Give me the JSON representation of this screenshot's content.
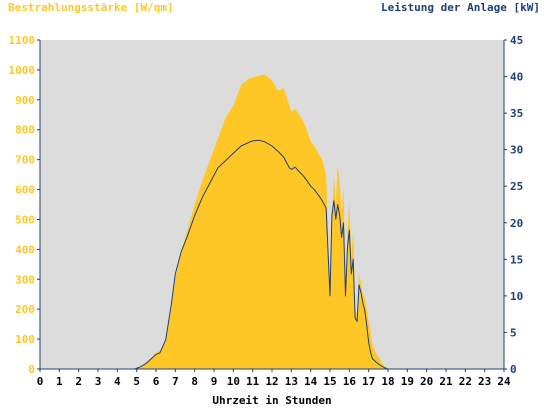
{
  "colors": {
    "irradiance": "#ffc726",
    "power": "#1f3f7a",
    "plot_bg": "#dcdcdc",
    "axis": "#1f3f7a"
  },
  "chart_data": {
    "type": "area",
    "title": "",
    "ylabel": "Bestrahlungsstärke [W/qm]",
    "y2label": "Leistung der Anlage [kW]",
    "xlabel": "Uhrzeit in Stunden",
    "xlim": [
      0,
      24
    ],
    "ylim": [
      0,
      1100
    ],
    "y2lim": [
      0,
      45
    ],
    "x_ticks": [
      "0",
      "1",
      "2",
      "3",
      "4",
      "5",
      "6",
      "7",
      "8",
      "9",
      "10",
      "11",
      "12",
      "13",
      "14",
      "15",
      "16",
      "17",
      "18",
      "19",
      "20",
      "21",
      "22",
      "23",
      "24"
    ],
    "y_ticks": [
      "0",
      "100",
      "200",
      "300",
      "400",
      "500",
      "600",
      "700",
      "800",
      "900",
      "1000",
      "1100"
    ],
    "y2_ticks": [
      "0",
      "5",
      "10",
      "15",
      "20",
      "25",
      "30",
      "35",
      "40",
      "45"
    ],
    "grid": false,
    "series": [
      {
        "name": "Bestrahlungsstärke [W/qm]",
        "axis": "left",
        "style": "filled-area",
        "x": [
          0,
          4.9,
          5.2,
          5.5,
          5.8,
          6.0,
          6.2,
          6.5,
          6.8,
          7.0,
          7.3,
          7.6,
          8.0,
          8.4,
          8.8,
          9.2,
          9.6,
          10.0,
          10.4,
          10.8,
          11.0,
          11.3,
          11.6,
          12.0,
          12.3,
          12.6,
          12.9,
          13.0,
          13.2,
          13.4,
          13.6,
          13.8,
          14.0,
          14.2,
          14.4,
          14.6,
          14.8,
          15.0,
          15.1,
          15.2,
          15.3,
          15.4,
          15.5,
          15.6,
          15.7,
          15.8,
          15.9,
          16.0,
          16.1,
          16.2,
          16.3,
          16.4,
          16.5,
          16.6,
          16.7,
          16.8,
          16.9,
          17.0,
          17.1,
          17.2,
          17.4,
          17.6,
          17.8,
          18.0,
          18.3,
          18.6,
          19.0,
          19.4,
          19.8,
          20.2,
          20.5,
          24
        ],
        "y": [
          0,
          0,
          5,
          20,
          40,
          55,
          60,
          100,
          210,
          300,
          390,
          460,
          550,
          630,
          700,
          770,
          840,
          880,
          950,
          970,
          975,
          980,
          985,
          965,
          930,
          940,
          880,
          860,
          870,
          850,
          830,
          800,
          760,
          745,
          720,
          700,
          650,
          250,
          500,
          650,
          550,
          680,
          630,
          520,
          610,
          280,
          450,
          560,
          380,
          460,
          200,
          180,
          320,
          290,
          250,
          240,
          200,
          160,
          120,
          80,
          50,
          30,
          10,
          0,
          0,
          0,
          0,
          0,
          0,
          0,
          0,
          0
        ]
      },
      {
        "name": "Leistung der Anlage [kW]",
        "axis": "right",
        "style": "line",
        "x": [
          0,
          4.9,
          5.2,
          5.5,
          5.8,
          6.0,
          6.2,
          6.5,
          6.8,
          7.0,
          7.3,
          7.6,
          8.0,
          8.4,
          8.8,
          9.2,
          9.6,
          10.0,
          10.4,
          10.8,
          11.0,
          11.3,
          11.6,
          12.0,
          12.3,
          12.6,
          12.9,
          13.0,
          13.2,
          13.4,
          13.6,
          13.8,
          14.0,
          14.2,
          14.4,
          14.6,
          14.8,
          15.0,
          15.1,
          15.2,
          15.3,
          15.4,
          15.5,
          15.6,
          15.7,
          15.8,
          15.9,
          16.0,
          16.1,
          16.2,
          16.3,
          16.4,
          16.5,
          16.6,
          16.7,
          16.8,
          16.9,
          17.0,
          17.1,
          17.2,
          17.4,
          17.6,
          17.8,
          18.0,
          18.3,
          18.6,
          19.0,
          19.4,
          19.8,
          20.2,
          20.5,
          24
        ],
        "y": [
          0,
          0,
          0.3,
          0.8,
          1.5,
          2,
          2.2,
          4,
          9,
          13,
          16,
          18,
          21,
          23.5,
          25.5,
          27.5,
          28.5,
          29.5,
          30.5,
          31,
          31.2,
          31.3,
          31.1,
          30.5,
          29.8,
          29,
          27.5,
          27.3,
          27.6,
          27,
          26.5,
          25.8,
          25,
          24.5,
          23.8,
          23,
          22,
          10,
          21,
          23,
          20.5,
          22.5,
          21,
          18,
          20,
          10,
          16.5,
          19,
          13,
          15,
          7,
          6.5,
          11.5,
          10.5,
          9,
          8,
          6,
          3.6,
          2.3,
          1.4,
          0.9,
          0.5,
          0.2,
          0,
          0,
          0,
          0,
          0,
          0,
          0,
          0,
          0
        ]
      }
    ]
  }
}
